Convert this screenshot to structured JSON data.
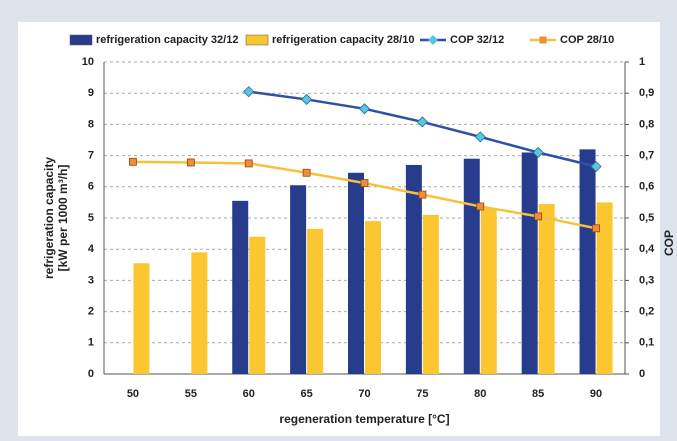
{
  "chart_data": {
    "type": "bar",
    "categories": [
      "50",
      "55",
      "60",
      "65",
      "70",
      "75",
      "80",
      "85",
      "90"
    ],
    "series": [
      {
        "name": "refrigeration capacity 32/12",
        "type": "bar",
        "color": "#283c8e",
        "values": [
          null,
          null,
          5.55,
          6.05,
          6.45,
          6.7,
          6.9,
          7.1,
          7.2
        ]
      },
      {
        "name": "refrigeration capacity 28/10",
        "type": "bar",
        "color": "#fcc630",
        "values": [
          3.55,
          3.9,
          4.4,
          4.65,
          4.9,
          5.1,
          5.3,
          5.45,
          5.5
        ]
      },
      {
        "name": "COP 32/12",
        "type": "line",
        "axis": "y2",
        "color": "#2f4fa8",
        "marker_color": "#58c6e0",
        "values": [
          null,
          null,
          0.905,
          0.88,
          0.85,
          0.808,
          0.76,
          0.71,
          0.665
        ]
      },
      {
        "name": "COP 28/10",
        "type": "line",
        "axis": "y2",
        "color": "#f6c23c",
        "marker_color": "#f28c38",
        "values": [
          0.68,
          0.678,
          0.675,
          0.645,
          0.612,
          0.575,
          0.537,
          0.505,
          0.467
        ]
      }
    ],
    "xlabel": "regeneration temperature [°C]",
    "ylabel": [
      "refrigeration capacity",
      "[kW per 1000 m³/h]"
    ],
    "y2label": "COP",
    "ylim": [
      0,
      10
    ],
    "yticks": [
      0,
      1,
      2,
      3,
      4,
      5,
      6,
      7,
      8,
      9,
      10
    ],
    "y2lim": [
      0,
      1
    ],
    "y2ticks": [
      0,
      {
        "value": 0.1,
        "label": "0,1"
      },
      {
        "value": 0.2,
        "label": "0,2"
      },
      {
        "value": 0.3,
        "label": "0,3"
      },
      {
        "value": 0.4,
        "label": "0,4"
      },
      {
        "value": 0.5,
        "label": "0,5"
      },
      {
        "value": 0.6,
        "label": "0,6"
      },
      {
        "value": 0.7,
        "label": "0,7"
      },
      {
        "value": 0.8,
        "label": "0,8"
      },
      {
        "value": 0.9,
        "label": "0,9"
      },
      1
    ],
    "grid": true
  }
}
